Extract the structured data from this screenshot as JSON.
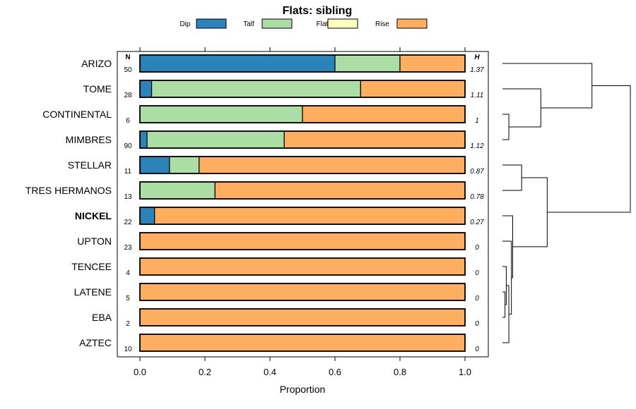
{
  "chart_data": {
    "type": "stacked-bar-horizontal",
    "title": "Flats: sibling",
    "xlabel": "Proportion",
    "xlim": [
      0,
      1
    ],
    "xticks": [
      "0.0",
      "0.2",
      "0.4",
      "0.6",
      "0.8",
      "1.0"
    ],
    "n_header": "N",
    "h_header": "H",
    "legend": [
      {
        "name": "Dip",
        "color": "#2b83ba"
      },
      {
        "name": "Talf",
        "color": "#abdda4"
      },
      {
        "name": "Flat",
        "color": "#ffffbf"
      },
      {
        "name": "Rise",
        "color": "#fdae61"
      }
    ],
    "rows": [
      {
        "label": "ARIZO",
        "n": "50",
        "h": "1.37",
        "bold": false,
        "values": [
          0.6,
          0.2,
          0.0,
          0.2
        ]
      },
      {
        "label": "TOME",
        "n": "28",
        "h": "1.11",
        "bold": false,
        "values": [
          0.036,
          0.643,
          0.0,
          0.321
        ]
      },
      {
        "label": "CONTINENTAL",
        "n": "6",
        "h": "1",
        "bold": false,
        "values": [
          0.0,
          0.5,
          0.0,
          0.5
        ]
      },
      {
        "label": "MIMBRES",
        "n": "90",
        "h": "1.12",
        "bold": false,
        "values": [
          0.022,
          0.422,
          0.0,
          0.556
        ]
      },
      {
        "label": "STELLAR",
        "n": "11",
        "h": "0.87",
        "bold": false,
        "values": [
          0.091,
          0.091,
          0.0,
          0.818
        ]
      },
      {
        "label": "TRES HERMANOS",
        "n": "13",
        "h": "0.78",
        "bold": false,
        "values": [
          0.0,
          0.231,
          0.0,
          0.769
        ]
      },
      {
        "label": "NICKEL",
        "n": "22",
        "h": "0.27",
        "bold": true,
        "values": [
          0.045,
          0.0,
          0.0,
          0.955
        ]
      },
      {
        "label": "UPTON",
        "n": "23",
        "h": "0",
        "bold": false,
        "values": [
          0.0,
          0.0,
          0.0,
          1.0
        ]
      },
      {
        "label": "TENCEE",
        "n": "4",
        "h": "0",
        "bold": false,
        "values": [
          0.0,
          0.0,
          0.0,
          1.0
        ]
      },
      {
        "label": "LATENE",
        "n": "5",
        "h": "0",
        "bold": false,
        "values": [
          0.0,
          0.0,
          0.0,
          1.0
        ]
      },
      {
        "label": "EBA",
        "n": "2",
        "h": "0",
        "bold": false,
        "values": [
          0.0,
          0.0,
          0.0,
          1.0
        ]
      },
      {
        "label": "AZTEC",
        "n": "10",
        "h": "0",
        "bold": false,
        "values": [
          0.0,
          0.0,
          0.0,
          1.0
        ]
      }
    ],
    "dendrogram": {
      "description": "hierarchical clustering of rows",
      "merges": [
        {
          "left": {
            "leaf": 2
          },
          "right": {
            "leaf": 3
          },
          "height": 0.05
        },
        {
          "left": {
            "leaf": 1
          },
          "right": {
            "node": 0
          },
          "height": 0.3
        },
        {
          "left": {
            "leaf": 0
          },
          "right": {
            "node": 1
          },
          "height": 0.7
        },
        {
          "left": {
            "leaf": 4
          },
          "right": {
            "leaf": 5
          },
          "height": 0.15
        },
        {
          "left": {
            "leaf": 9
          },
          "right": {
            "leaf": 10
          },
          "height": 0.02
        },
        {
          "left": {
            "leaf": 8
          },
          "right": {
            "node": 4
          },
          "height": 0.03
        },
        {
          "left": {
            "leaf": 11
          },
          "right": {
            "node": 5
          },
          "height": 0.05
        },
        {
          "left": {
            "leaf": 7
          },
          "right": {
            "node": 6
          },
          "height": 0.07
        },
        {
          "left": {
            "leaf": 6
          },
          "right": {
            "node": 7
          },
          "height": 0.08
        },
        {
          "left": {
            "node": 3
          },
          "right": {
            "node": 8
          },
          "height": 0.35
        },
        {
          "left": {
            "node": 2
          },
          "right": {
            "node": 9
          },
          "height": 1.0
        }
      ]
    }
  }
}
